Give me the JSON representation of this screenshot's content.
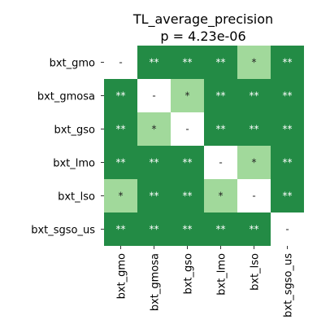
{
  "chart_data": {
    "type": "heatmap",
    "title": "TL_average_precision",
    "subtitle": "p = 4.23e-06",
    "row_labels": [
      "bxt_gmo",
      "bxt_gmosa",
      "bxt_gso",
      "bxt_lmo",
      "bxt_lso",
      "bxt_sgso_us"
    ],
    "col_labels": [
      "bxt_gmo",
      "bxt_gmosa",
      "bxt_gso",
      "bxt_lmo",
      "bxt_lso",
      "bxt_sgso_us"
    ],
    "cells": [
      [
        "-",
        "**",
        "**",
        "**",
        "*",
        "**"
      ],
      [
        "**",
        "-",
        "*",
        "**",
        "**",
        "**"
      ],
      [
        "**",
        "*",
        "-",
        "**",
        "**",
        "**"
      ],
      [
        "**",
        "**",
        "**",
        "-",
        "*",
        "**"
      ],
      [
        "*",
        "**",
        "**",
        "*",
        "-",
        "**"
      ],
      [
        "**",
        "**",
        "**",
        "**",
        "**",
        "-"
      ]
    ],
    "colors": {
      "**": "#238b45",
      "*": "#a1d99b",
      "-": "#ffffff"
    },
    "text_colors": {
      "**": "#ffffff",
      "*": "#222222",
      "-": "#222222"
    }
  }
}
